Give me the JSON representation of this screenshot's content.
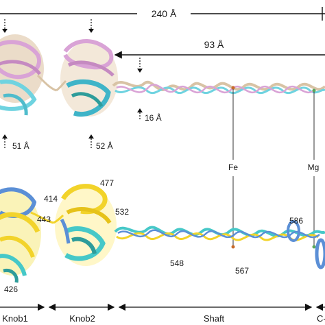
{
  "dimensions": {
    "total_length": "240 Å",
    "shaft_span": "93 Å",
    "knob_width_1": "51 Å",
    "knob_width_2": "52 Å",
    "shaft_width": "16 Å"
  },
  "ions": {
    "iron": "Fe",
    "magnesium": "Mg"
  },
  "residues": {
    "r414": "414",
    "r426": "426",
    "r443": "443",
    "r477": "477",
    "r532": "532",
    "r548": "548",
    "r567": "567",
    "r586": "586"
  },
  "sections": {
    "knob1": "Knob1",
    "knob2": "Knob2",
    "shaft": "Shaft",
    "cterm": "C-"
  },
  "colors": {
    "top_pink": "#d9a3d6",
    "top_tan": "#d8c3a5",
    "top_cyan": "#6fd3e0",
    "bottom_yellow": "#f2d32a",
    "bottom_blue": "#5b8fd6",
    "bottom_cyan": "#46c8c8",
    "bottom_teal": "#2e9c9a"
  }
}
